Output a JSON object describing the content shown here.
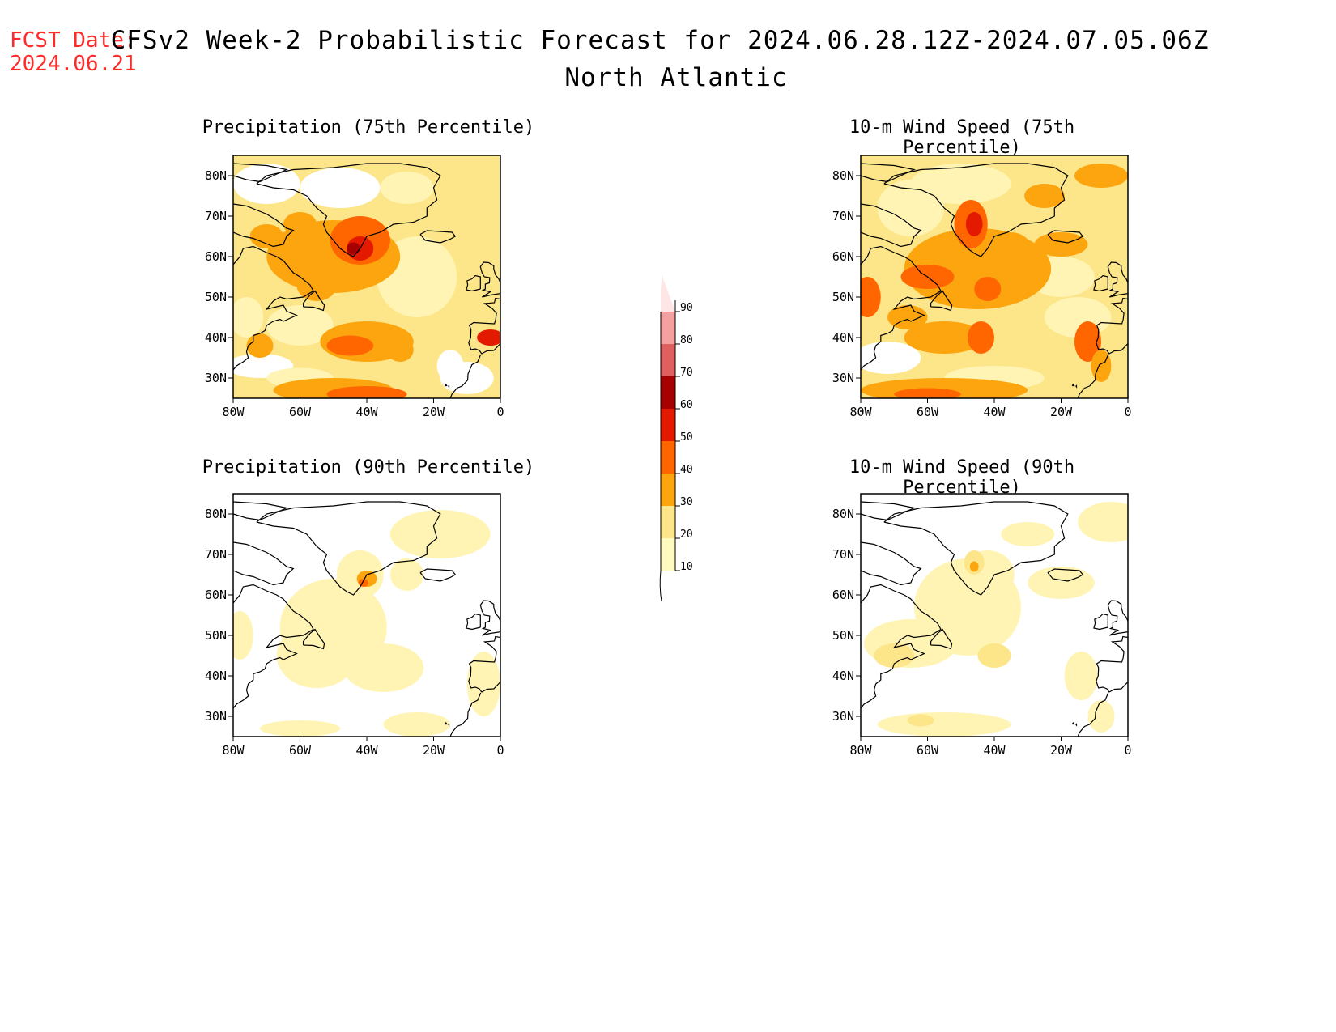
{
  "header": {
    "fcst_label": "FCST Date:",
    "fcst_date": "2024.06.21",
    "title": "CFSv2 Week-2 Probabilistic Forecast for 2024.06.28.12Z-2024.07.05.06Z",
    "subtitle": "North Atlantic"
  },
  "panels": [
    {
      "title": "Precipitation (75th Percentile)",
      "variable": "precip",
      "percentile": 75
    },
    {
      "title": "10-m Wind Speed (75th Percentile)",
      "variable": "wind",
      "percentile": 75
    },
    {
      "title": "Precipitation (90th Percentile)",
      "variable": "precip",
      "percentile": 90
    },
    {
      "title": "10-m Wind Speed (90th Percentile)",
      "variable": "wind",
      "percentile": 90
    }
  ],
  "axes": {
    "lat_ticks": [
      "80N",
      "70N",
      "60N",
      "50N",
      "40N",
      "30N"
    ],
    "lat_values": [
      80,
      70,
      60,
      50,
      40,
      30
    ],
    "lon_ticks": [
      "80W",
      "60W",
      "40W",
      "20W",
      "0"
    ],
    "lon_values": [
      -80,
      -60,
      -40,
      -20,
      0
    ],
    "lat_range": [
      25,
      85
    ],
    "lon_range": [
      -80,
      0
    ]
  },
  "colorbar": {
    "levels": [
      "10",
      "20",
      "30",
      "40",
      "50",
      "60",
      "70",
      "80",
      "90"
    ],
    "colors": [
      "#fffbc0",
      "#fde68a",
      "#fda50f",
      "#ff6600",
      "#e31a00",
      "#a60000",
      "#e06060",
      "#f5a0a0",
      "#ffe6e6"
    ]
  },
  "palette": {
    "white": "#ffffff",
    "c10": "#fff4b3",
    "c20": "#fde68a",
    "c30": "#fda50f",
    "c40": "#ff6600",
    "c50": "#e31a00",
    "c60": "#a60000",
    "coast": "#000000",
    "fcst_color": "#ff2a2a"
  }
}
